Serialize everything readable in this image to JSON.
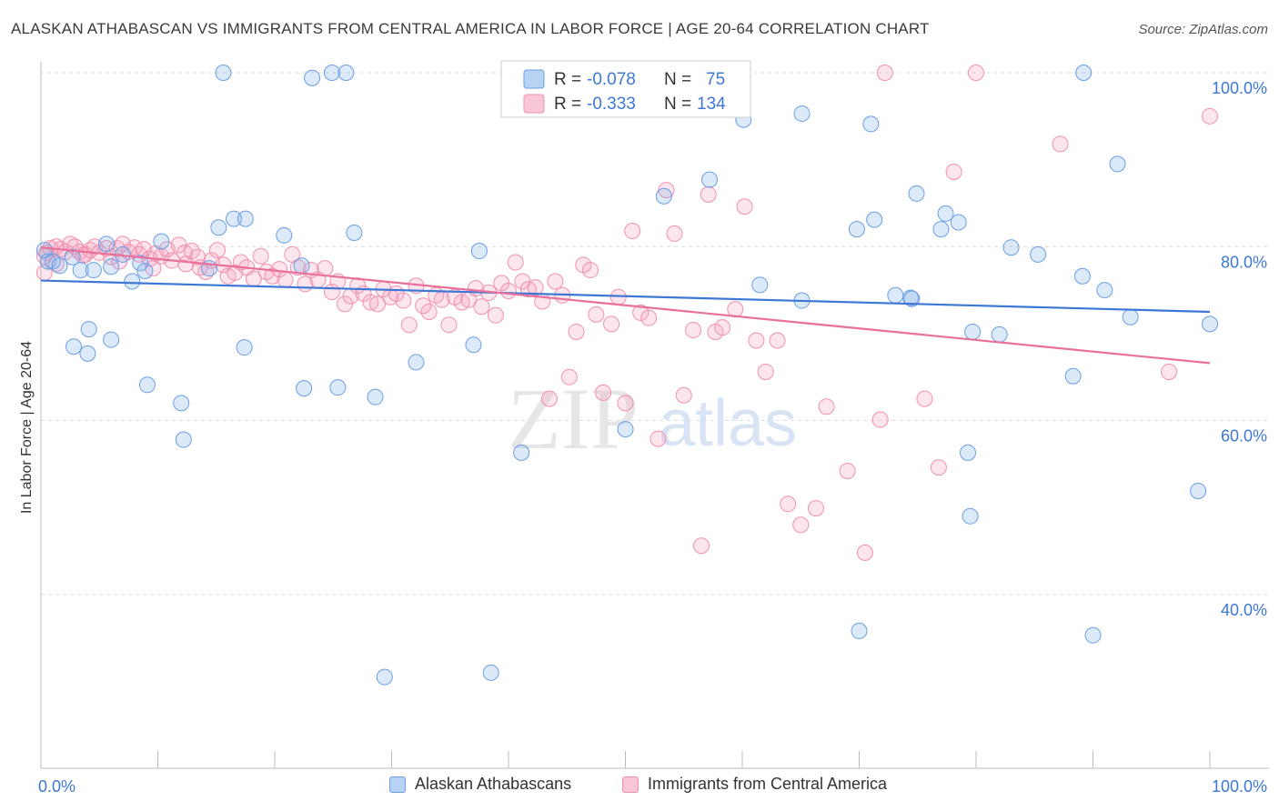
{
  "title": "ALASKAN ATHABASCAN VS IMMIGRANTS FROM CENTRAL AMERICA IN LABOR FORCE | AGE 20-64 CORRELATION CHART",
  "source": "Source: ZipAtlas.com",
  "watermark": {
    "zip": "ZIP",
    "atlas": "atlas"
  },
  "colors": {
    "blue": "#6a9ee3",
    "blue_line": "#3d78d4",
    "pink": "#f090b0",
    "pink_line": "#e8709a",
    "value_text": "#3d78d4"
  },
  "legend": {
    "rows": [
      {
        "r_label": "R = ",
        "r_value": "-0.078",
        "n_label": "N = ",
        "n_value": "75"
      },
      {
        "r_label": "R = ",
        "r_value": "-0.333",
        "n_label": "N = ",
        "n_value": "134"
      }
    ]
  },
  "chart_data": {
    "type": "scatter",
    "title": "ALASKAN ATHABASCAN VS IMMIGRANTS FROM CENTRAL AMERICA IN LABOR FORCE | AGE 20-64 CORRELATION CHART",
    "xlabel": "",
    "ylabel": "In Labor Force | Age 20-64",
    "xlim": [
      0,
      100
    ],
    "ylim": [
      20,
      100
    ],
    "x_tick_labels": [
      "0.0%",
      "100.0%"
    ],
    "y_tick_labels": [
      "40.0%",
      "60.0%",
      "80.0%",
      "100.0%"
    ],
    "y_ticks": [
      40,
      60,
      80,
      100
    ],
    "grid": true,
    "legend_position": "top-center",
    "series": [
      {
        "name": "Alaskan Athabascans",
        "color": "#6a9ee3",
        "r": -0.078,
        "n": 75,
        "trend": {
          "x": [
            0,
            100
          ],
          "y": [
            76.1,
            72.5
          ]
        },
        "points": [
          [
            0.3,
            79.6
          ],
          [
            0.6,
            78.3
          ],
          [
            1.0,
            78.3
          ],
          [
            1.6,
            77.8
          ],
          [
            2.7,
            78.8
          ],
          [
            3.4,
            77.3
          ],
          [
            4.5,
            77.3
          ],
          [
            5.6,
            80.3
          ],
          [
            2.8,
            68.5
          ],
          [
            4.0,
            67.7
          ],
          [
            4.1,
            70.5
          ],
          [
            6.0,
            69.3
          ],
          [
            6.0,
            77.7
          ],
          [
            7.0,
            79.1
          ],
          [
            7.8,
            76.0
          ],
          [
            8.5,
            78.1
          ],
          [
            8.9,
            77.2
          ],
          [
            9.1,
            64.1
          ],
          [
            10.3,
            80.6
          ],
          [
            12.0,
            62.0
          ],
          [
            12.2,
            57.8
          ],
          [
            14.4,
            77.5
          ],
          [
            15.2,
            82.2
          ],
          [
            15.6,
            100.0
          ],
          [
            16.5,
            83.2
          ],
          [
            17.4,
            68.4
          ],
          [
            17.5,
            83.2
          ],
          [
            20.8,
            81.3
          ],
          [
            22.3,
            77.8
          ],
          [
            22.5,
            63.7
          ],
          [
            23.2,
            99.4
          ],
          [
            24.9,
            100.0
          ],
          [
            25.4,
            63.8
          ],
          [
            26.1,
            100.0
          ],
          [
            26.8,
            81.6
          ],
          [
            28.6,
            62.7
          ],
          [
            29.4,
            30.5
          ],
          [
            32.1,
            66.7
          ],
          [
            37.0,
            68.7
          ],
          [
            37.5,
            79.5
          ],
          [
            38.5,
            31.0
          ],
          [
            41.1,
            56.3
          ],
          [
            50.0,
            59.0
          ],
          [
            53.3,
            85.8
          ],
          [
            57.2,
            87.7
          ],
          [
            60.1,
            94.6
          ],
          [
            61.5,
            75.6
          ],
          [
            65.1,
            73.8
          ],
          [
            65.1,
            95.3
          ],
          [
            70.0,
            35.8
          ],
          [
            69.8,
            82.0
          ],
          [
            71.0,
            94.1
          ],
          [
            71.3,
            83.1
          ],
          [
            73.1,
            74.4
          ],
          [
            74.4,
            74.1
          ],
          [
            74.5,
            74.0
          ],
          [
            74.9,
            86.1
          ],
          [
            77.0,
            82.0
          ],
          [
            77.4,
            83.8
          ],
          [
            78.5,
            82.8
          ],
          [
            79.3,
            56.3
          ],
          [
            79.5,
            49.0
          ],
          [
            79.7,
            70.2
          ],
          [
            82.0,
            69.9
          ],
          [
            83.0,
            79.9
          ],
          [
            85.3,
            79.1
          ],
          [
            89.1,
            76.6
          ],
          [
            88.3,
            65.1
          ],
          [
            89.2,
            100.0
          ],
          [
            90.0,
            35.3
          ],
          [
            91.0,
            75.0
          ],
          [
            92.1,
            89.5
          ],
          [
            93.2,
            71.9
          ],
          [
            99.0,
            51.9
          ],
          [
            100.0,
            71.1
          ]
        ]
      },
      {
        "name": "Immigrants from Central America",
        "color": "#f090b0",
        "r": -0.333,
        "n": 134,
        "trend": {
          "x": [
            0,
            100
          ],
          "y": [
            79.9,
            66.6
          ]
        },
        "points": [
          [
            0.3,
            78.9
          ],
          [
            0.5,
            79.3
          ],
          [
            0.8,
            79.8
          ],
          [
            1.3,
            80.0
          ],
          [
            1.7,
            79.7
          ],
          [
            2.1,
            79.4
          ],
          [
            2.5,
            80.3
          ],
          [
            2.9,
            80.0
          ],
          [
            3.3,
            79.4
          ],
          [
            3.8,
            79.1
          ],
          [
            4.2,
            79.6
          ],
          [
            4.6,
            80.0
          ],
          [
            5.0,
            79.3
          ],
          [
            5.6,
            79.8
          ],
          [
            6.0,
            78.8
          ],
          [
            6.5,
            79.8
          ],
          [
            7.0,
            80.3
          ],
          [
            7.5,
            79.4
          ],
          [
            8.0,
            79.9
          ],
          [
            8.4,
            79.1
          ],
          [
            8.8,
            79.7
          ],
          [
            9.3,
            78.6
          ],
          [
            9.8,
            79.2
          ],
          [
            10.3,
            78.9
          ],
          [
            10.8,
            79.7
          ],
          [
            11.2,
            78.4
          ],
          [
            11.8,
            80.2
          ],
          [
            12.3,
            79.3
          ],
          [
            12.9,
            79.5
          ],
          [
            13.4,
            78.8
          ],
          [
            13.6,
            77.6
          ],
          [
            14.1,
            77.1
          ],
          [
            14.6,
            78.4
          ],
          [
            15.1,
            79.6
          ],
          [
            15.6,
            77.9
          ],
          [
            16.0,
            76.6
          ],
          [
            16.6,
            77.0
          ],
          [
            17.1,
            78.2
          ],
          [
            17.6,
            77.6
          ],
          [
            18.2,
            76.3
          ],
          [
            18.8,
            78.9
          ],
          [
            19.3,
            77.1
          ],
          [
            19.8,
            76.6
          ],
          [
            20.4,
            77.4
          ],
          [
            20.9,
            76.2
          ],
          [
            21.5,
            79.1
          ],
          [
            22.0,
            77.6
          ],
          [
            22.6,
            75.7
          ],
          [
            23.1,
            77.3
          ],
          [
            23.7,
            76.2
          ],
          [
            24.3,
            77.5
          ],
          [
            24.9,
            74.8
          ],
          [
            25.4,
            76.0
          ],
          [
            26.0,
            73.4
          ],
          [
            26.5,
            74.3
          ],
          [
            27.1,
            75.5
          ],
          [
            27.6,
            74.6
          ],
          [
            28.2,
            73.6
          ],
          [
            28.8,
            73.4
          ],
          [
            29.3,
            75.1
          ],
          [
            29.9,
            74.2
          ],
          [
            30.4,
            74.6
          ],
          [
            31.0,
            73.8
          ],
          [
            31.5,
            71.0
          ],
          [
            32.1,
            75.5
          ],
          [
            32.7,
            73.2
          ],
          [
            33.2,
            72.5
          ],
          [
            33.8,
            74.4
          ],
          [
            34.3,
            73.9
          ],
          [
            34.9,
            71.0
          ],
          [
            35.4,
            74.2
          ],
          [
            36.0,
            73.6
          ],
          [
            36.6,
            73.9
          ],
          [
            37.2,
            75.2
          ],
          [
            37.7,
            73.1
          ],
          [
            38.3,
            74.7
          ],
          [
            38.9,
            72.1
          ],
          [
            39.4,
            75.8
          ],
          [
            40.0,
            74.9
          ],
          [
            40.6,
            78.2
          ],
          [
            41.2,
            76.0
          ],
          [
            41.7,
            75.1
          ],
          [
            42.3,
            75.3
          ],
          [
            42.9,
            73.7
          ],
          [
            43.5,
            62.5
          ],
          [
            44.0,
            76.0
          ],
          [
            44.6,
            74.4
          ],
          [
            45.2,
            65.0
          ],
          [
            45.8,
            70.2
          ],
          [
            46.4,
            77.9
          ],
          [
            47.0,
            77.3
          ],
          [
            47.5,
            72.2
          ],
          [
            48.1,
            63.2
          ],
          [
            48.8,
            71.1
          ],
          [
            49.4,
            74.2
          ],
          [
            50.0,
            62.0
          ],
          [
            50.6,
            81.8
          ],
          [
            51.3,
            72.4
          ],
          [
            52.0,
            71.8
          ],
          [
            52.8,
            57.9
          ],
          [
            53.5,
            86.5
          ],
          [
            54.2,
            81.5
          ],
          [
            55.0,
            62.9
          ],
          [
            55.8,
            70.4
          ],
          [
            56.5,
            45.6
          ],
          [
            57.1,
            86.0
          ],
          [
            57.7,
            70.2
          ],
          [
            58.3,
            70.7
          ],
          [
            59.4,
            72.8
          ],
          [
            60.2,
            84.6
          ],
          [
            61.2,
            69.2
          ],
          [
            62.0,
            65.6
          ],
          [
            63.0,
            69.2
          ],
          [
            63.9,
            50.4
          ],
          [
            65.0,
            48.0
          ],
          [
            66.3,
            49.9
          ],
          [
            67.2,
            61.6
          ],
          [
            69.0,
            54.2
          ],
          [
            70.5,
            44.8
          ],
          [
            71.8,
            60.1
          ],
          [
            72.2,
            100.0
          ],
          [
            75.6,
            62.5
          ],
          [
            76.8,
            54.6
          ],
          [
            78.1,
            88.6
          ],
          [
            80.0,
            100.0
          ],
          [
            87.2,
            91.8
          ],
          [
            96.5,
            65.6
          ],
          [
            100.0,
            95.0
          ],
          [
            0.3,
            77.0
          ],
          [
            1.3,
            78.0
          ],
          [
            3.6,
            79.0
          ],
          [
            6.7,
            78.3
          ],
          [
            9.6,
            77.5
          ],
          [
            12.4,
            78.0
          ]
        ]
      }
    ]
  }
}
